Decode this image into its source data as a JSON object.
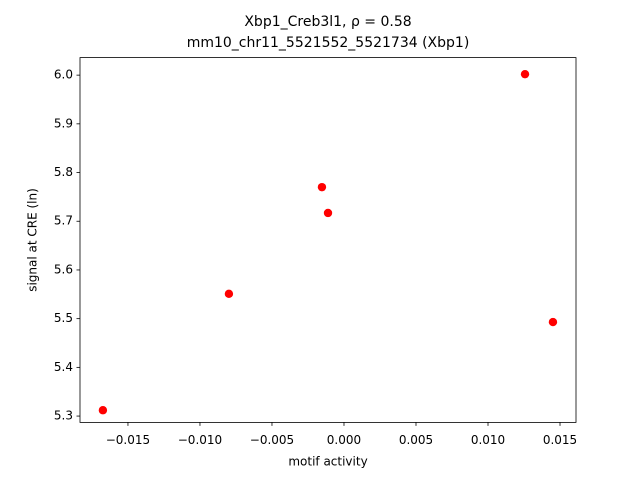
{
  "chart_data": {
    "type": "scatter",
    "title": "Xbp1_Creb3l1, ρ = 0.58",
    "subtitle": "mm10_chr11_5521552_5521734 (Xbp1)",
    "x_label": "motif activity",
    "y_label": "signal at CRE (ln)",
    "color": "#ff0000",
    "x": [
      -0.01674,
      -0.00799,
      -0.00153,
      -0.00111,
      0.01257,
      0.01451
    ],
    "values": [
      5.312,
      5.551,
      5.77,
      5.717,
      6.002,
      5.493
    ],
    "xlim": [
      -0.01833,
      0.01611
    ],
    "ylim": [
      5.287,
      6.036
    ],
    "xticks": [
      {
        "value": -0.015,
        "label": "−0.015"
      },
      {
        "value": -0.01,
        "label": "−0.010"
      },
      {
        "value": -0.005,
        "label": "−0.005"
      },
      {
        "value": 0,
        "label": "0.000"
      },
      {
        "value": 0.005,
        "label": "0.005"
      },
      {
        "value": 0.01,
        "label": "0.010"
      },
      {
        "value": 0.015,
        "label": "0.015"
      }
    ],
    "yticks": [
      {
        "value": 5.3,
        "label": "5.3"
      },
      {
        "value": 5.4,
        "label": "5.4"
      },
      {
        "value": 5.5,
        "label": "5.5"
      },
      {
        "value": 5.6,
        "label": "5.6"
      },
      {
        "value": 5.7,
        "label": "5.7"
      },
      {
        "value": 5.8,
        "label": "5.8"
      },
      {
        "value": 5.9,
        "label": "5.9"
      },
      {
        "value": 6.0,
        "label": "6.0"
      }
    ]
  }
}
